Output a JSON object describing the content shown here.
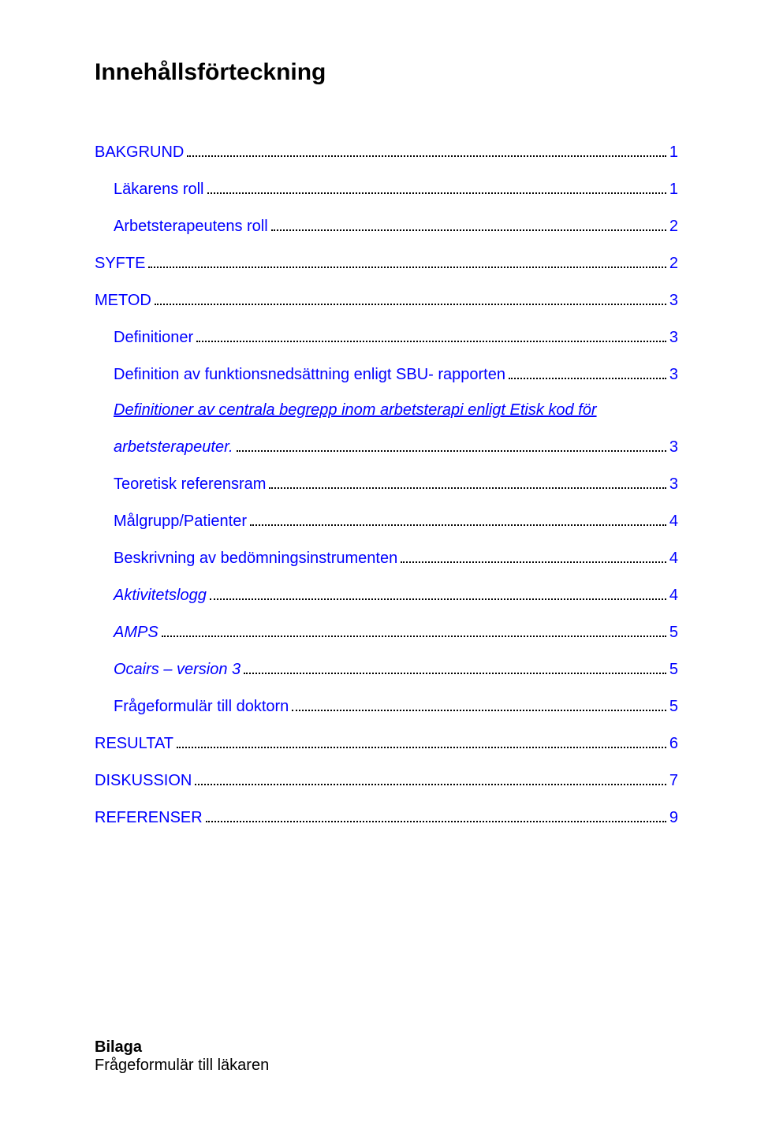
{
  "title": "Innehållsförteckning",
  "link_color": "#0000ff",
  "text_color": "#000000",
  "toc": [
    {
      "label": "BAKGRUND",
      "page": "1",
      "indent": 0,
      "italic": false
    },
    {
      "label": "Läkarens roll",
      "page": "1",
      "indent": 1,
      "italic": false
    },
    {
      "label": "Arbetsterapeutens roll",
      "page": "2",
      "indent": 1,
      "italic": false
    },
    {
      "label": "SYFTE",
      "page": "2",
      "indent": 0,
      "italic": false
    },
    {
      "label": "METOD",
      "page": "3",
      "indent": 0,
      "italic": false
    },
    {
      "label": "Definitioner",
      "page": "3",
      "indent": 1,
      "italic": false
    },
    {
      "label": "Definition av funktionsnedsättning enligt SBU- rapporten",
      "page": "3",
      "indent": 2,
      "italic": false
    },
    {
      "label_line1": "Definitioner av centrala begrepp inom arbetsterapi enligt Etisk kod för",
      "label_line2": "arbetsterapeuter.",
      "page": "3",
      "indent": 2,
      "italic": true,
      "two_line": true
    },
    {
      "label": "Teoretisk referensram",
      "page": "3",
      "indent": 1,
      "italic": false
    },
    {
      "label": "Målgrupp/Patienter",
      "page": "4",
      "indent": 1,
      "italic": false
    },
    {
      "label": "Beskrivning av bedömningsinstrumenten",
      "page": "4",
      "indent": 1,
      "italic": false
    },
    {
      "label": "Aktivitetslogg",
      "page": "4",
      "indent": 2,
      "italic": true
    },
    {
      "label": "AMPS",
      "page": "5",
      "indent": 2,
      "italic": true
    },
    {
      "label": "Ocairs – version 3",
      "page": "5",
      "indent": 2,
      "italic": true
    },
    {
      "label": "Frågeformulär till doktorn",
      "page": "5",
      "indent": 2,
      "italic": false
    },
    {
      "label": "RESULTAT",
      "page": "6",
      "indent": 0,
      "italic": false
    },
    {
      "label": "DISKUSSION",
      "page": "7",
      "indent": 0,
      "italic": false
    },
    {
      "label": "REFERENSER",
      "page": "9",
      "indent": 0,
      "italic": false
    }
  ],
  "bottom": {
    "heading": "Bilaga",
    "line": "Frågeformulär till läkaren"
  }
}
